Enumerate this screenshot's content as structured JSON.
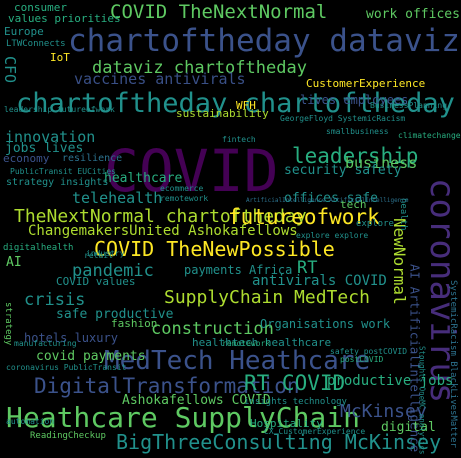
{
  "palette": {
    "background": "#000000",
    "purple": "#440154",
    "indigo": "#472d7b",
    "blue": "#3b528b",
    "steel": "#2c728e",
    "teal": "#21918c",
    "green": "#28ae80",
    "lime": "#5ec962",
    "yellowgreen": "#addc30",
    "yellow": "#fde725"
  },
  "words": [
    {
      "text": "COVID",
      "color": "#440154"
    },
    {
      "text": "chartoftheday dataviz",
      "color": "#3b528b"
    },
    {
      "text": "chartoftheday chartoftheday",
      "color": "#21918c"
    },
    {
      "text": "coronavirus",
      "color": "#472d7b"
    },
    {
      "text": "Heathcare SupplyChain",
      "color": "#5ec962"
    },
    {
      "text": "MedTech Heathcare",
      "color": "#3b528b"
    },
    {
      "text": "COVID TheNewPossible",
      "color": "#fde725"
    },
    {
      "text": "COVID TheNextNormal",
      "color": "#5ec962"
    },
    {
      "text": "TheNextNormal chartoftheday",
      "color": "#addc30"
    },
    {
      "text": "futureofwork",
      "color": "#fde725"
    },
    {
      "text": "leadership",
      "color": "#28ae80"
    },
    {
      "text": "DigitalTransformation",
      "color": "#3b528b"
    },
    {
      "text": "BigThreeConsulting McKinsey",
      "color": "#21918c"
    },
    {
      "text": "SupplyChain MedTech",
      "color": "#addc30"
    },
    {
      "text": "RT COVID",
      "color": "#28ae80"
    },
    {
      "text": "dataviz chartoftheday",
      "color": "#5ec962"
    },
    {
      "text": "vaccines antivirals",
      "color": "#3b528b"
    },
    {
      "text": "McKinsey",
      "color": "#3b528b"
    },
    {
      "text": "construction",
      "color": "#5ec962"
    },
    {
      "text": "crisis",
      "color": "#21918c"
    },
    {
      "text": "pandemic",
      "color": "#21918c"
    },
    {
      "text": "business",
      "color": "#5ec962"
    },
    {
      "text": "innovation",
      "color": "#21918c"
    },
    {
      "text": "telehealth",
      "color": "#21918c"
    },
    {
      "text": "healthcare",
      "color": "#28ae80"
    },
    {
      "text": "ChangemakersUnited Ashokafellows",
      "color": "#addc30"
    },
    {
      "text": "Ashokafellows COVID",
      "color": "#5ec962"
    },
    {
      "text": "NewNormal",
      "color": "#addc30"
    },
    {
      "text": "productive jobs",
      "color": "#28ae80"
    },
    {
      "text": "safe productive",
      "color": "#21918c"
    },
    {
      "text": "antivirals COVID",
      "color": "#21918c"
    },
    {
      "text": "payments Africa",
      "color": "#21918c"
    },
    {
      "text": "RT",
      "color": "#28ae80"
    },
    {
      "text": "jobs lives",
      "color": "#21918c"
    },
    {
      "text": "lives employees",
      "color": "#3b528b"
    },
    {
      "text": "security safety",
      "color": "#21918c"
    },
    {
      "text": "offices safe",
      "color": "#21918c"
    },
    {
      "text": "covid payments",
      "color": "#5ec962"
    },
    {
      "text": "AI ArtificialIntelligence",
      "color": "#3b528b"
    },
    {
      "text": "CustomerExperience",
      "color": "#fde725"
    },
    {
      "text": "work offices",
      "color": "#5ec962"
    },
    {
      "text": "sustainability",
      "color": "#addc30"
    },
    {
      "text": "CFO",
      "color": "#21918c"
    },
    {
      "text": "hotels luxury",
      "color": "#3b528b"
    },
    {
      "text": "Organisations work",
      "color": "#21918c"
    },
    {
      "text": "fashion",
      "color": "#5ec962"
    },
    {
      "text": "COVID values",
      "color": "#21918c"
    },
    {
      "text": "digital",
      "color": "#5ec962"
    },
    {
      "text": "Hospitality",
      "color": "#28ae80"
    },
    {
      "text": "consumer",
      "color": "#28ae80"
    },
    {
      "text": "values priorities",
      "color": "#28ae80"
    },
    {
      "text": "Europe",
      "color": "#21918c"
    },
    {
      "text": "IoT",
      "color": "#fde725"
    },
    {
      "text": "WFH",
      "color": "#fde725"
    },
    {
      "text": "economy",
      "color": "#3b528b"
    },
    {
      "text": "resilience",
      "color": "#2c728e"
    },
    {
      "text": "strategy insights",
      "color": "#21918c"
    },
    {
      "text": "tech",
      "color": "#5ec962"
    },
    {
      "text": "healthtech healthcare",
      "color": "#21918c"
    },
    {
      "text": "remotework",
      "color": "#21918c"
    },
    {
      "text": "ecommerce",
      "color": "#21918c"
    },
    {
      "text": "AI",
      "color": "#5ec962"
    },
    {
      "text": "insights technology",
      "color": "#21918c"
    },
    {
      "text": "digitalhealth",
      "color": "#28ae80"
    },
    {
      "text": "explore",
      "color": "#21918c"
    },
    {
      "text": "LTWConnects",
      "color": "#21918c"
    },
    {
      "text": "leadership futureofwork",
      "color": "#21918c"
    },
    {
      "text": "ReadingCheckup",
      "color": "#5ec962"
    },
    {
      "text": "PublicTransit EUCities",
      "color": "#21918c"
    },
    {
      "text": "SystemicRacism BlackLivesMatter",
      "color": "#2c728e"
    },
    {
      "text": "fintech",
      "color": "#21918c"
    },
    {
      "text": "health",
      "color": "#21918c"
    },
    {
      "text": "strategy",
      "color": "#5ec962"
    },
    {
      "text": "GeorgeFloyd SystemicRacism",
      "color": "#21918c"
    },
    {
      "text": "retail",
      "color": "#21918c"
    },
    {
      "text": "safety postCOVID",
      "color": "#21918c"
    },
    {
      "text": "industry",
      "color": "#21918c"
    },
    {
      "text": "automation",
      "color": "#21918c"
    },
    {
      "text": "manufacturing",
      "color": "#21918c"
    },
    {
      "text": "coronavirus PublicTransit",
      "color": "#21918c"
    },
    {
      "text": "CX CustomerExperience",
      "color": "#21918c"
    },
    {
      "text": "climatechange",
      "color": "#28ae80"
    },
    {
      "text": "explore explore",
      "color": "#21918c"
    },
    {
      "text": "ArtificialIntelligence ArtificialIntelligence",
      "color": "#2c728e"
    },
    {
      "text": "BusinessPlanning",
      "color": "#21918c"
    },
    {
      "text": "remotework",
      "color": "#28ae80"
    },
    {
      "text": "smallbusiness",
      "color": "#21918c"
    },
    {
      "text": "postCOVID",
      "color": "#28ae80"
    },
    {
      "text": "Stoughts OneMC analytics",
      "color": "#21918c"
    }
  ]
}
